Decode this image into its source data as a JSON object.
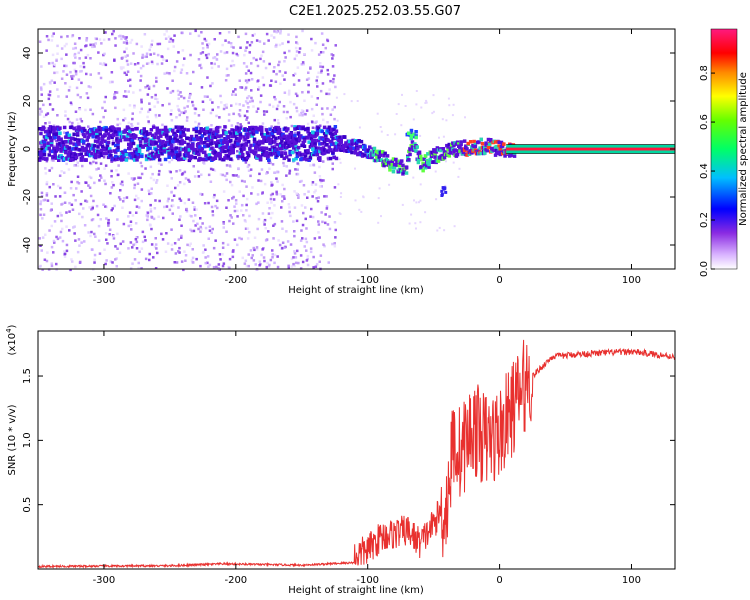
{
  "title": "C2E1.2025.252.03.55.G07",
  "chart_data": [
    {
      "type": "heatmap",
      "name": "spectrogram",
      "xlabel": "Height of straight line (km)",
      "ylabel": "Frequency (Hz)",
      "xlim": [
        -350,
        133
      ],
      "ylim": [
        -50,
        50
      ],
      "x_ticks": [
        -300,
        -200,
        -100,
        0,
        100
      ],
      "y_ticks": [
        -40,
        -20,
        0,
        20,
        40
      ],
      "colorbar": {
        "label": "Normalized spectral amplitude",
        "range": [
          0,
          1
        ],
        "ticks": [
          "0.0",
          "0.2",
          "0.4",
          "0.6",
          "0.8"
        ],
        "colors": [
          "#ffffff",
          "#c080ff",
          "#6000e0",
          "#0000ff",
          "#00c0ff",
          "#00ff80",
          "#80ff00",
          "#ffff00",
          "#ff8000",
          "#ff0000",
          "#ff0080"
        ]
      },
      "main_trace": {
        "description_points_x": [
          -350,
          -300,
          -250,
          -200,
          -150,
          -120,
          -100,
          -85,
          -72,
          -68,
          -60,
          -50,
          -40,
          -30,
          -20,
          -10,
          0,
          10,
          133
        ],
        "description_points_y": [
          3,
          3,
          3,
          3,
          3,
          3,
          0,
          -5,
          -8,
          5,
          -6,
          -2,
          0,
          1,
          1.5,
          2,
          0.5,
          0,
          0
        ]
      }
    },
    {
      "type": "line",
      "name": "snr",
      "xlabel": "Height of straight line (km)",
      "ylabel": "SNR (10 * v/v)",
      "yscale_label": "(x10",
      "yscale_exp": "4",
      "xlim": [
        -350,
        133
      ],
      "ylim": [
        0,
        1.85
      ],
      "x_ticks": [
        -300,
        -200,
        -100,
        0,
        100
      ],
      "y_ticks": [
        "0.5",
        "1.0",
        "1.5"
      ],
      "y_tick_values": [
        0.5,
        1.0,
        1.5
      ],
      "color": "#ee2222",
      "key_points_x": [
        -350,
        -250,
        -210,
        -150,
        -110,
        -100,
        -90,
        -70,
        -60,
        -50,
        -40,
        -35,
        -30,
        -20,
        -10,
        0,
        10,
        20,
        30,
        40,
        60,
        80,
        100,
        133
      ],
      "key_points_y": [
        0.02,
        0.025,
        0.04,
        0.03,
        0.05,
        0.1,
        0.2,
        0.25,
        0.15,
        0.3,
        0.5,
        1.0,
        0.9,
        1.1,
        1.0,
        1.05,
        1.25,
        1.45,
        1.55,
        1.65,
        1.67,
        1.68,
        1.69,
        1.65
      ]
    }
  ]
}
